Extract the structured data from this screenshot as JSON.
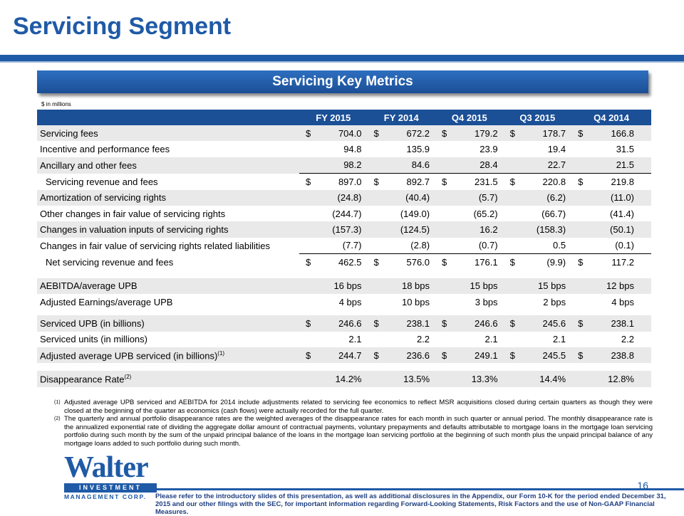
{
  "title": "Servicing Segment",
  "banner": "Servicing Key Metrics",
  "units": "$ in millions",
  "columns": [
    "FY 2015",
    "FY 2014",
    "Q4 2015",
    "Q3 2015",
    "Q4 2014"
  ],
  "rows": [
    {
      "label": "Servicing fees",
      "dollar": true,
      "values": [
        "704.0",
        "672.2",
        "179.2",
        "178.7",
        "166.8"
      ]
    },
    {
      "label": "Incentive and performance fees",
      "values": [
        "94.8",
        "135.9",
        "23.9",
        "19.4",
        "31.5"
      ]
    },
    {
      "label": "Ancillary and other fees",
      "values": [
        "98.2",
        "84.6",
        "28.4",
        "22.7",
        "21.5"
      ]
    },
    {
      "label": "Servicing revenue and fees",
      "dollar": true,
      "values": [
        "897.0",
        "892.7",
        "231.5",
        "220.8",
        "219.8"
      ]
    },
    {
      "label": "Amortization of servicing rights",
      "values": [
        "(24.8)",
        "(40.4)",
        "(5.7)",
        "(6.2)",
        "(11.0)"
      ]
    },
    {
      "label": "Other changes in fair value of servicing rights",
      "values": [
        "(244.7)",
        "(149.0)",
        "(65.2)",
        "(66.7)",
        "(41.4)"
      ]
    },
    {
      "label": "Changes in valuation inputs of servicing rights",
      "values": [
        "(157.3)",
        "(124.5)",
        "16.2",
        "(158.3)",
        "(50.1)"
      ]
    },
    {
      "label": "Changes in fair value of servicing rights related liabilities",
      "values": [
        "(7.7)",
        "(2.8)",
        "(0.7)",
        "0.5",
        "(0.1)"
      ]
    },
    {
      "label": "Net servicing revenue and fees",
      "dollar": true,
      "values": [
        "462.5",
        "576.0",
        "176.1",
        "(9.9)",
        "117.2"
      ]
    },
    {
      "label": "AEBITDA/average UPB",
      "values": [
        "16 bps",
        "18 bps",
        "15 bps",
        "15 bps",
        "12 bps"
      ]
    },
    {
      "label": "Adjusted Earnings/average UPB",
      "values": [
        "4 bps",
        "10 bps",
        "3 bps",
        "2 bps",
        "4 bps"
      ]
    },
    {
      "label": "Serviced UPB (in billions)",
      "dollar": true,
      "values": [
        "246.6",
        "238.1",
        "246.6",
        "245.6",
        "238.1"
      ]
    },
    {
      "label": "Serviced units (in millions)",
      "values": [
        "2.1",
        "2.2",
        "2.1",
        "2.1",
        "2.2"
      ]
    },
    {
      "label": "Adjusted average UPB serviced (in billions)",
      "sup": "(1)",
      "dollar": true,
      "values": [
        "244.7",
        "236.6",
        "249.1",
        "245.5",
        "238.8"
      ]
    },
    {
      "label": "Disappearance Rate",
      "sup": "(2)",
      "values": [
        "14.2%",
        "13.5%",
        "13.3%",
        "14.4%",
        "12.8%"
      ]
    }
  ],
  "dollar_sign": "$",
  "notes": [
    {
      "mark": "(1)",
      "text": "Adjusted average UPB serviced and AEBITDA for 2014 include adjustments related to servicing fee economics to reflect MSR acquisitions closed during certain quarters as though they were closed at the beginning of the quarter as economics (cash flows) were actually recorded for the full quarter."
    },
    {
      "mark": "(2)",
      "text": "The quarterly and annual portfolio disappearance rates are the weighted averages of the disappearance rates for each month in such quarter or annual period.  The monthly disappearance rate is the annualized exponential rate of dividing the aggregate dollar amount of contractual payments, voluntary prepayments and defaults attributable to mortgage loans in the mortgage loan servicing portfolio during such month by the sum of the unpaid principal balance of the loans in the mortgage loan servicing portfolio at the beginning of such month plus the unpaid principal balance of any mortgage loans added to such portfolio during such month."
    }
  ],
  "logo": {
    "word": "Walter",
    "bar": "INVESTMENT",
    "sub": "MANAGEMENT CORP."
  },
  "page_number": "16",
  "footer": "Please refer to the introductory slides of this presentation, as well as additional disclosures in the Appendix, our Form 10-K for the period ended December 31, 2015 and our other filings with the SEC, for important information regarding Forward-Looking Statements, Risk Factors and the use of Non-GAAP Financial Measures."
}
